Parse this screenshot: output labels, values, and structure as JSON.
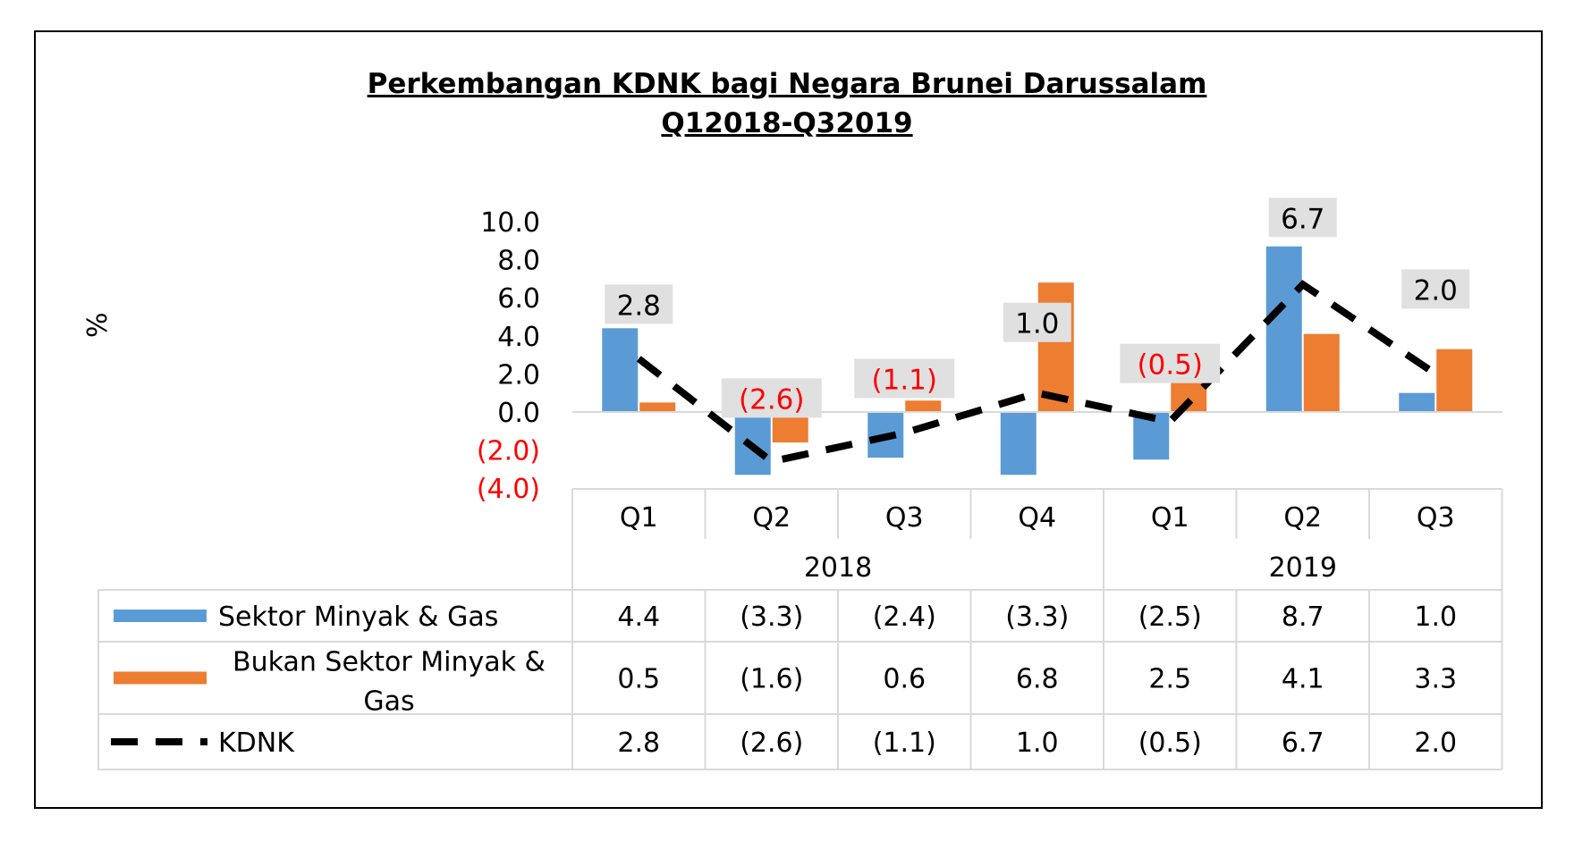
{
  "chart_data": {
    "type": "bar",
    "title": "Perkembangan KDNK bagi Negara Brunei Darussalam",
    "subtitle": "Q12018-Q32019",
    "ylabel": "%",
    "ylim": [
      -4,
      10
    ],
    "yticks": [
      10,
      8,
      6,
      4,
      2,
      0,
      -2,
      -4
    ],
    "ytick_labels": [
      "10.0",
      "8.0",
      "6.0",
      "4.0",
      "2.0",
      "0.0",
      "(2.0)",
      "(4.0)"
    ],
    "negative_label_color": "#ff0000",
    "categories": [
      "Q1",
      "Q2",
      "Q3",
      "Q4",
      "Q1",
      "Q2",
      "Q3"
    ],
    "groups": [
      {
        "label": "2018",
        "span": 4
      },
      {
        "label": "2019",
        "span": 3
      }
    ],
    "series": [
      {
        "name": "Sektor Minyak & Gas",
        "kind": "bar",
        "color": "#5b9bd5",
        "values": [
          4.4,
          -3.3,
          -2.4,
          -3.3,
          -2.5,
          8.7,
          1.0
        ],
        "labels": [
          "4.4",
          "(3.3)",
          "(2.4)",
          "(3.3)",
          "(2.5)",
          "8.7",
          "1.0"
        ]
      },
      {
        "name": "Bukan Sektor Minyak & Gas",
        "kind": "bar",
        "color": "#ed7d31",
        "values": [
          0.5,
          -1.6,
          0.6,
          6.8,
          2.5,
          4.1,
          3.3
        ],
        "labels": [
          "0.5",
          "(1.6)",
          "0.6",
          "6.8",
          "2.5",
          "4.1",
          "3.3"
        ]
      },
      {
        "name": "KDNK",
        "kind": "line",
        "style": "dashed",
        "color": "#000000",
        "values": [
          2.8,
          -2.6,
          -1.1,
          1.0,
          -0.5,
          6.7,
          2.0
        ],
        "labels": [
          "2.8",
          "(2.6)",
          "(1.1)",
          "1.0",
          "(0.5)",
          "6.7",
          "2.0"
        ]
      }
    ],
    "legend": "data-table",
    "grid": false
  }
}
